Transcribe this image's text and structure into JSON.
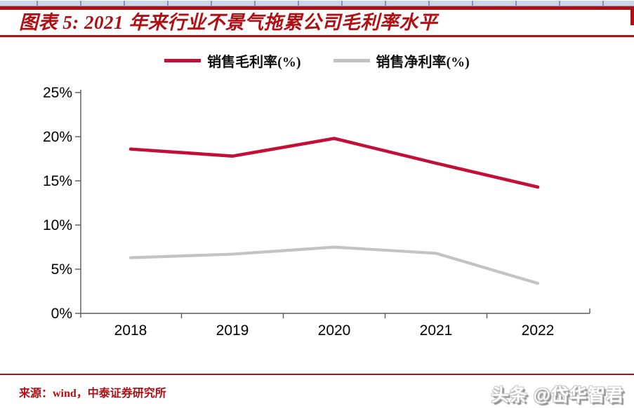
{
  "header": {
    "title": "图表 5: 2021 年来行业不景气拖累公司毛利率水平"
  },
  "chart_data": {
    "type": "line",
    "categories": [
      "2018",
      "2019",
      "2020",
      "2021",
      "2022"
    ],
    "series": [
      {
        "name": "销售毛利率(%)",
        "color": "#c40d37",
        "values": [
          18.6,
          17.8,
          19.8,
          17.0,
          14.3
        ]
      },
      {
        "name": "销售净利率(%)",
        "color": "#c3c3c3",
        "values": [
          6.3,
          6.7,
          7.5,
          6.8,
          3.4
        ]
      }
    ],
    "title": "",
    "xlabel": "",
    "ylabel": "",
    "ylim": [
      0,
      25
    ],
    "yticks": [
      0,
      5,
      10,
      15,
      20,
      25
    ],
    "ytick_labels": [
      "0%",
      "5%",
      "10%",
      "15%",
      "20%",
      "25%"
    ],
    "grid": false,
    "legend_position": "top-center"
  },
  "footer": {
    "source": "来源：wind，中泰证券研究所",
    "watermark": "头条 @岱华智君"
  },
  "colors": {
    "brand_red": "#b01014",
    "series_red": "#c40d37",
    "series_gray": "#c3c3c3",
    "axis_gray": "#595959",
    "strip_blue": "#c9d7e8"
  }
}
